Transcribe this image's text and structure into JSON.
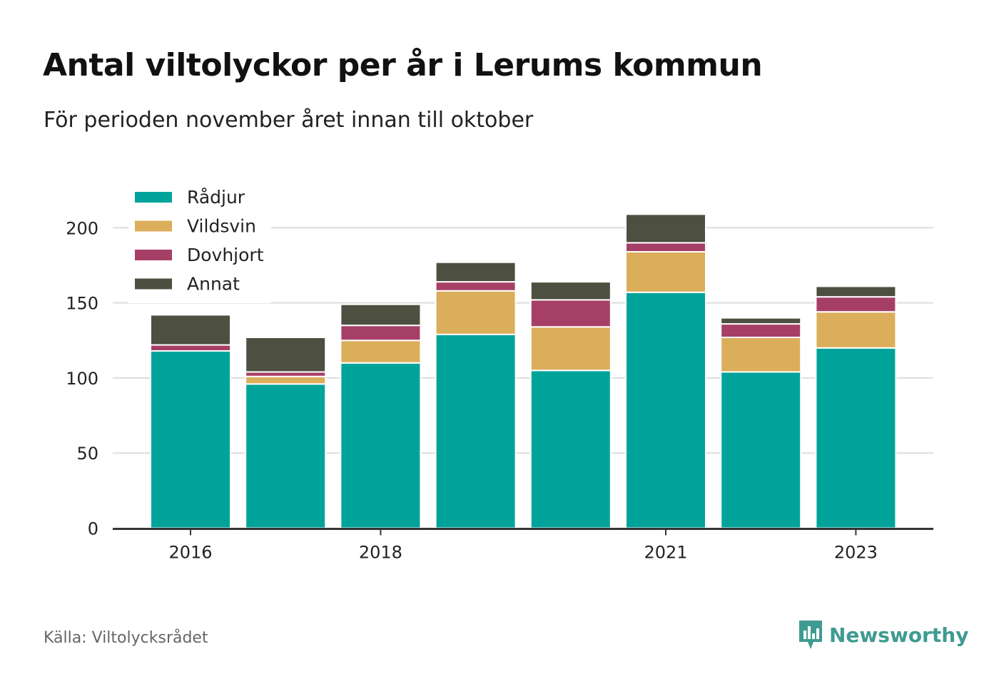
{
  "title": "Antal viltolyckor per år i Lerums kommun",
  "subtitle": "För perioden november året innan till oktober",
  "source": "Källa: Viltolycksrådet",
  "brand": "Newsworthy",
  "colors": {
    "Rådjur": "#00a39a",
    "Vildsvin": "#dbae5b",
    "Dovhjort": "#a63f66",
    "Annat": "#4d4f40",
    "grid": "#dddddd",
    "axis": "#333333",
    "brand": "#3f9b91"
  },
  "chart_data": {
    "type": "bar",
    "stacked": true,
    "categories": [
      "2016",
      "2017",
      "2018",
      "2019",
      "2020",
      "2021",
      "2022",
      "2023"
    ],
    "x_tick_labels": [
      "2016",
      "",
      "2018",
      "",
      "",
      "2021",
      "",
      "2023"
    ],
    "series": [
      {
        "name": "Rådjur",
        "values": [
          118,
          96,
          110,
          129,
          105,
          157,
          104,
          120
        ]
      },
      {
        "name": "Vildsvin",
        "values": [
          0,
          5,
          15,
          29,
          29,
          27,
          23,
          24
        ]
      },
      {
        "name": "Dovhjort",
        "values": [
          4,
          3,
          10,
          6,
          18,
          6,
          9,
          10
        ]
      },
      {
        "name": "Annat",
        "values": [
          20,
          23,
          14,
          13,
          12,
          19,
          4,
          7
        ]
      }
    ],
    "ylim": [
      0,
      210
    ],
    "yticks": [
      0,
      50,
      100,
      150,
      200
    ],
    "grid": true,
    "legend": "top-left",
    "xlabel": "",
    "ylabel": ""
  }
}
